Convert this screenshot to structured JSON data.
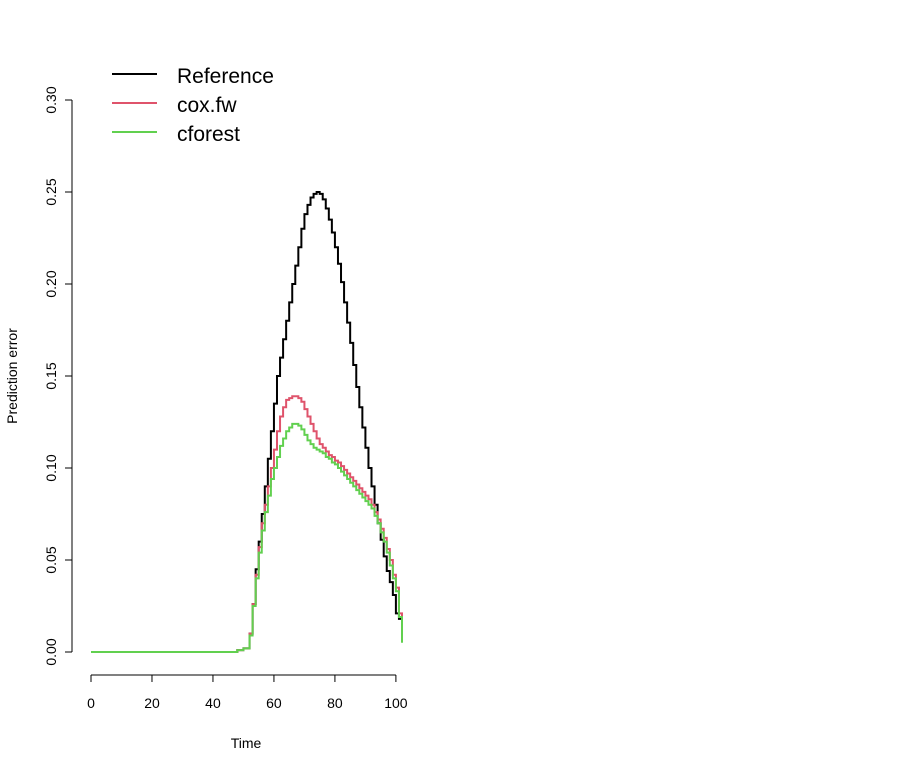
{
  "chart_data": {
    "type": "line",
    "step": true,
    "xlabel": "Time",
    "ylabel": "Prediction error",
    "xlim": [
      0,
      102
    ],
    "ylim": [
      0,
      0.3
    ],
    "xticks": [
      0,
      20,
      40,
      60,
      80,
      100
    ],
    "yticks": [
      0.0,
      0.05,
      0.1,
      0.15,
      0.2,
      0.25,
      0.3
    ],
    "xtick_labels": [
      "0",
      "20",
      "40",
      "60",
      "80",
      "100"
    ],
    "ytick_labels": [
      "0.00",
      "0.05",
      "0.10",
      "0.15",
      "0.20",
      "0.25",
      "0.30"
    ],
    "legend": {
      "position": "top-left"
    },
    "series": [
      {
        "name": "Reference",
        "color": "#000000",
        "x": [
          0,
          48,
          50,
          52,
          53,
          54,
          55,
          56,
          57,
          58,
          59,
          60,
          61,
          62,
          63,
          64,
          65,
          66,
          67,
          68,
          69,
          70,
          71,
          72,
          73,
          74,
          75,
          76,
          77,
          78,
          79,
          80,
          81,
          82,
          83,
          84,
          85,
          86,
          87,
          88,
          89,
          90,
          91,
          92,
          93,
          94,
          95,
          96,
          97,
          98,
          99,
          100,
          101,
          102
        ],
        "y": [
          0,
          0.001,
          0.002,
          0.01,
          0.026,
          0.045,
          0.06,
          0.075,
          0.09,
          0.105,
          0.12,
          0.135,
          0.15,
          0.16,
          0.17,
          0.18,
          0.19,
          0.2,
          0.21,
          0.22,
          0.23,
          0.238,
          0.243,
          0.247,
          0.249,
          0.25,
          0.249,
          0.246,
          0.241,
          0.235,
          0.228,
          0.22,
          0.211,
          0.201,
          0.19,
          0.179,
          0.168,
          0.156,
          0.144,
          0.133,
          0.122,
          0.111,
          0.1,
          0.09,
          0.08,
          0.07,
          0.061,
          0.052,
          0.044,
          0.038,
          0.031,
          0.021,
          0.018,
          0.017
        ]
      },
      {
        "name": "cox.fw",
        "color": "#DF536B",
        "x": [
          0,
          48,
          50,
          52,
          53,
          54,
          55,
          56,
          57,
          58,
          59,
          60,
          61,
          62,
          63,
          64,
          65,
          66,
          67,
          68,
          69,
          70,
          71,
          72,
          73,
          74,
          75,
          76,
          77,
          78,
          79,
          80,
          81,
          82,
          83,
          84,
          85,
          86,
          87,
          88,
          89,
          90,
          91,
          92,
          93,
          94,
          95,
          96,
          97,
          98,
          99,
          100,
          101,
          102
        ],
        "y": [
          0,
          0.001,
          0.002,
          0.01,
          0.026,
          0.042,
          0.057,
          0.07,
          0.08,
          0.09,
          0.1,
          0.11,
          0.12,
          0.128,
          0.133,
          0.137,
          0.138,
          0.139,
          0.139,
          0.138,
          0.136,
          0.132,
          0.128,
          0.124,
          0.12,
          0.116,
          0.113,
          0.111,
          0.109,
          0.107,
          0.106,
          0.104,
          0.103,
          0.101,
          0.099,
          0.097,
          0.095,
          0.093,
          0.091,
          0.089,
          0.087,
          0.085,
          0.083,
          0.08,
          0.076,
          0.072,
          0.067,
          0.062,
          0.056,
          0.05,
          0.042,
          0.035,
          0.021,
          0.018
        ]
      },
      {
        "name": "cforest",
        "color": "#61D04F",
        "x": [
          0,
          48,
          50,
          52,
          53,
          54,
          55,
          56,
          57,
          58,
          59,
          60,
          61,
          62,
          63,
          64,
          65,
          66,
          67,
          68,
          69,
          70,
          71,
          72,
          73,
          74,
          75,
          76,
          77,
          78,
          79,
          80,
          81,
          82,
          83,
          84,
          85,
          86,
          87,
          88,
          89,
          90,
          91,
          92,
          93,
          94,
          95,
          96,
          97,
          98,
          99,
          100,
          101,
          102
        ],
        "y": [
          0,
          0.001,
          0.002,
          0.009,
          0.025,
          0.04,
          0.054,
          0.066,
          0.076,
          0.085,
          0.094,
          0.1,
          0.106,
          0.112,
          0.116,
          0.12,
          0.122,
          0.124,
          0.124,
          0.123,
          0.121,
          0.118,
          0.115,
          0.113,
          0.111,
          0.11,
          0.109,
          0.108,
          0.106,
          0.105,
          0.103,
          0.102,
          0.1,
          0.098,
          0.096,
          0.094,
          0.092,
          0.09,
          0.088,
          0.086,
          0.084,
          0.082,
          0.08,
          0.078,
          0.074,
          0.07,
          0.065,
          0.06,
          0.054,
          0.047,
          0.04,
          0.033,
          0.019,
          0.005
        ]
      }
    ]
  }
}
